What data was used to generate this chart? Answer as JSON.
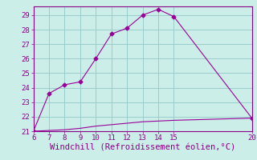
{
  "xlabel": "Windchill (Refroidissement éolien,°C)",
  "line1_x": [
    6,
    7,
    8,
    9,
    10,
    11,
    12,
    13,
    14,
    15,
    20
  ],
  "line1_y": [
    21.0,
    23.6,
    24.2,
    24.4,
    26.0,
    27.7,
    28.1,
    29.0,
    29.4,
    28.9,
    21.9
  ],
  "line2_x": [
    6,
    7,
    8,
    9,
    10,
    11,
    12,
    13,
    14,
    15,
    20
  ],
  "line2_y": [
    21.0,
    21.05,
    21.1,
    21.2,
    21.35,
    21.45,
    21.55,
    21.65,
    21.7,
    21.75,
    21.9
  ],
  "line_color": "#990099",
  "marker": "D",
  "marker_size": 2.5,
  "bg_color": "#cceee8",
  "grid_color": "#99cccc",
  "xlim": [
    6,
    20
  ],
  "ylim": [
    21,
    29.6
  ],
  "xticks": [
    6,
    7,
    8,
    9,
    10,
    11,
    12,
    13,
    14,
    15,
    20
  ],
  "yticks": [
    21,
    22,
    23,
    24,
    25,
    26,
    27,
    28,
    29
  ],
  "tick_fontsize": 6.5,
  "xlabel_fontsize": 7.5,
  "tick_color": "#880088",
  "label_color": "#880088",
  "spine_color": "#880088"
}
